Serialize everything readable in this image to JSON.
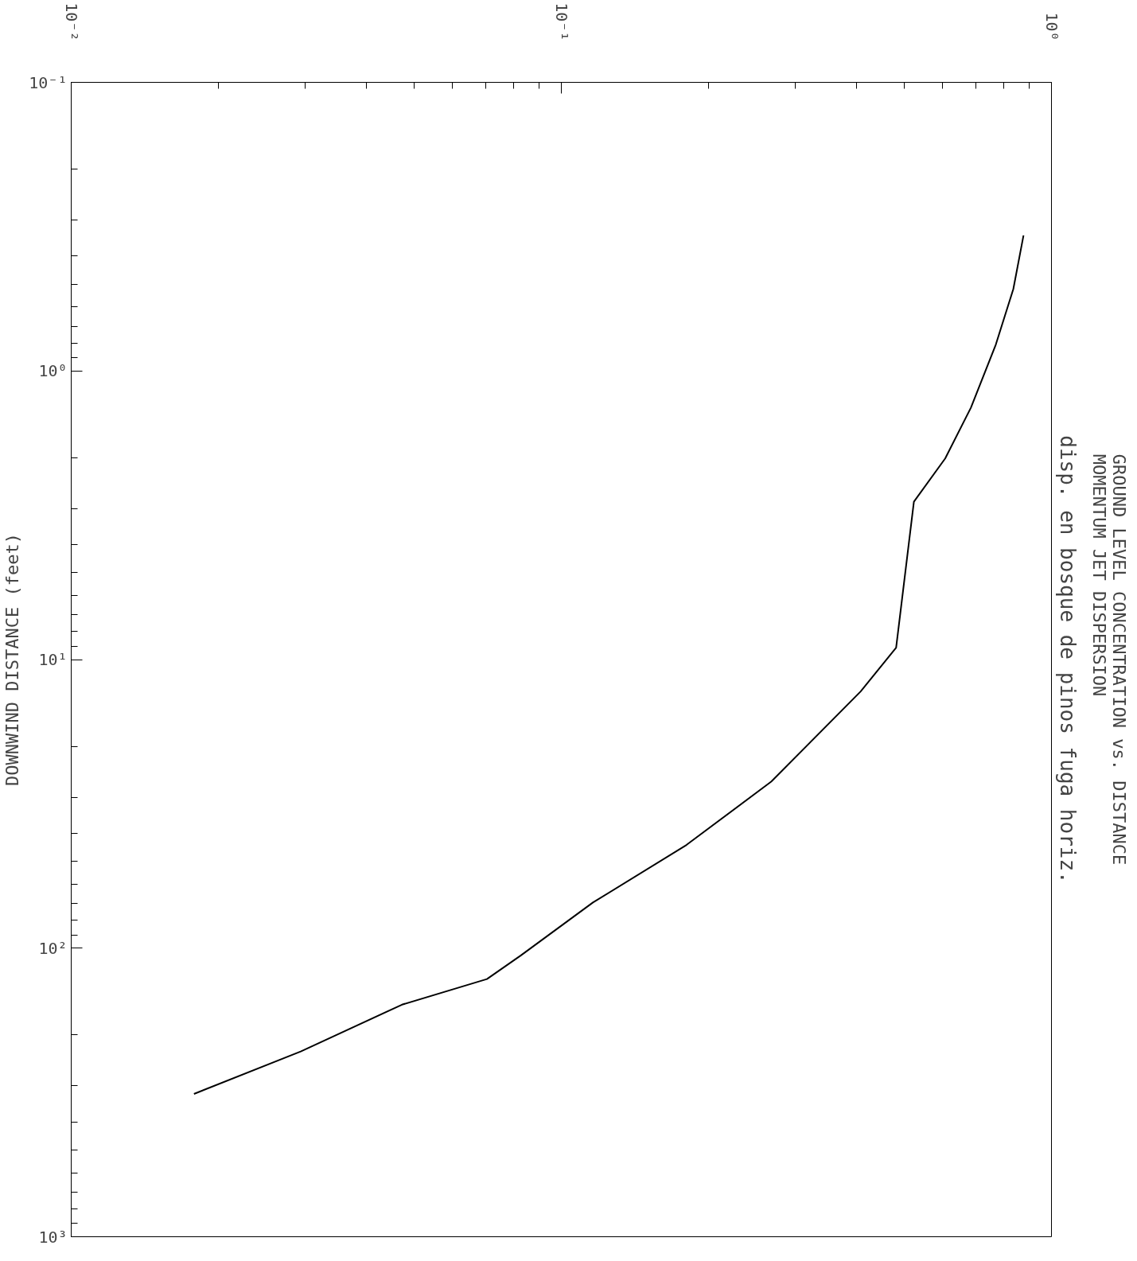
{
  "chart_data": {
    "type": "line",
    "title": "GROUND LEVEL CONCENTRATION vs. DISTANCE\nMOMENTUM JET DISPERSION",
    "subtitle": "disp. en bosque de pinos fuga horiz.",
    "ylabel": "DOWNWIND DISTANCE (feet)",
    "x": [
      0.877,
      0.836,
      0.77,
      0.685,
      0.607,
      0.524,
      0.482,
      0.408,
      0.268,
      0.18,
      0.116,
      0.0827,
      0.0705,
      0.0473,
      0.0294,
      0.0178
    ],
    "series": [
      {
        "color": "#000000",
        "values": [
          0.339,
          0.52,
          0.81,
          1.34,
          2.01,
          2.84,
          9.1,
          12.9,
          26.5,
          43.9,
          69.5,
          106,
          128,
          157,
          228,
          320
        ]
      }
    ],
    "ylim": [
      1000,
      0.1
    ],
    "xlim": [
      0.01,
      1
    ],
    "yticks": [
      {
        "value": 0.1,
        "label": "10⁻¹"
      },
      {
        "value": 1,
        "label": "10⁰"
      },
      {
        "value": 10,
        "label": "10¹"
      },
      {
        "value": 100,
        "label": "10²"
      },
      {
        "value": 1000,
        "label": "10³"
      }
    ],
    "xticks": [
      {
        "value": 0.01,
        "label": "10⁻²"
      },
      {
        "value": 0.1,
        "label": "10⁻¹"
      },
      {
        "value": 1,
        "label": "10⁰"
      }
    ],
    "log": "xy",
    "marker": "none",
    "line_style": "solid"
  }
}
